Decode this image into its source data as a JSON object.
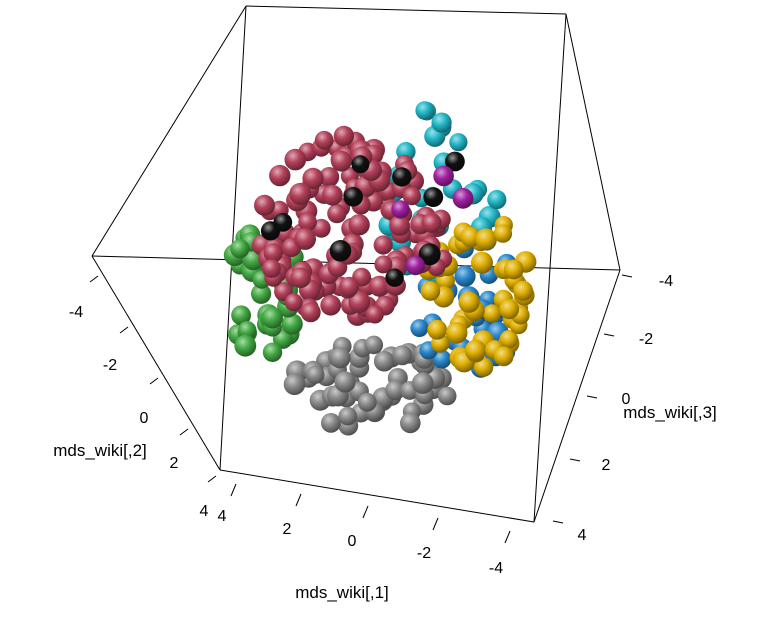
{
  "chart_data": {
    "type": "scatter",
    "projection": "3d",
    "axes": {
      "x": {
        "label": "mds_wiki[,1]",
        "ticks": [
          {
            "text": "4"
          },
          {
            "text": "2"
          },
          {
            "text": "0"
          },
          {
            "text": "-2"
          },
          {
            "text": "-4"
          }
        ]
      },
      "y": {
        "label": "mds_wiki[,2]",
        "ticks": [
          {
            "text": "-4"
          },
          {
            "text": "-2"
          },
          {
            "text": "0"
          },
          {
            "text": "2"
          },
          {
            "text": "4"
          }
        ]
      },
      "z": {
        "label": "mds_wiki[,3]",
        "ticks": [
          {
            "text": "-4"
          },
          {
            "text": "-2"
          },
          {
            "text": "0"
          },
          {
            "text": "2"
          },
          {
            "text": "4"
          }
        ]
      }
    },
    "series": [
      {
        "color": "#b4405a",
        "count": 130
      },
      {
        "color": "#8a8a8a",
        "count": 55
      },
      {
        "color": "#e0b000",
        "count": 50
      },
      {
        "color": "#44aa44",
        "count": 35
      },
      {
        "color": "#22b8c8",
        "count": 30
      },
      {
        "color": "#2a88cc",
        "count": 25
      },
      {
        "color": "#111111",
        "count": 10
      },
      {
        "color": "#a020a0",
        "count": 4
      }
    ]
  }
}
